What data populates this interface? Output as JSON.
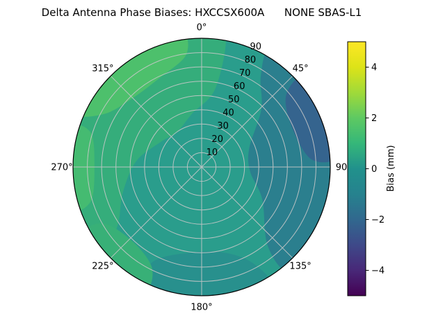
{
  "chart_data": {
    "type": "polar_contour",
    "title": "Delta Antenna Phase Biases: HXCCSX600A      NONE SBAS-L1",
    "station": "HXCCSX600A",
    "signal": "NONE SBAS-L1",
    "azimuth_tick_labels": [
      {
        "deg": 0,
        "label": "0°"
      },
      {
        "deg": 45,
        "label": "45°"
      },
      {
        "deg": 90,
        "label": "90"
      },
      {
        "deg": 135,
        "label": "135°"
      },
      {
        "deg": 180,
        "label": "180°"
      },
      {
        "deg": 225,
        "label": "225°"
      },
      {
        "deg": 270,
        "label": "270°"
      },
      {
        "deg": 315,
        "label": "315°"
      }
    ],
    "radial_axis": {
      "ticks": [
        10,
        20,
        30,
        40,
        50,
        60,
        70,
        80,
        90
      ],
      "max": 90,
      "label_azimuth_deg": 22.5
    },
    "colorbar": {
      "label": "Bias (mm)",
      "min": -5,
      "max": 5,
      "colormap": "viridis",
      "tick_labels": [
        {
          "value": -4,
          "label": "−4"
        },
        {
          "value": -2,
          "label": "−2"
        },
        {
          "value": 0,
          "label": "0"
        },
        {
          "value": 2,
          "label": "2"
        },
        {
          "value": 4,
          "label": "4"
        }
      ],
      "gradient_stops": [
        {
          "value": -5,
          "color": "#440154"
        },
        {
          "value": -4,
          "color": "#482878"
        },
        {
          "value": -3,
          "color": "#3e4989"
        },
        {
          "value": -2,
          "color": "#31688e"
        },
        {
          "value": -1,
          "color": "#26828e"
        },
        {
          "value": 0,
          "color": "#21918c"
        },
        {
          "value": 1,
          "color": "#35b779"
        },
        {
          "value": 2,
          "color": "#5ec962"
        },
        {
          "value": 3,
          "color": "#a0da39"
        },
        {
          "value": 4,
          "color": "#dde318"
        },
        {
          "value": 5,
          "color": "#fde725"
        }
      ]
    },
    "base_bias_mm": 0.5,
    "base_color": "#2a9d8c",
    "grid_color": "#c8c8c8",
    "outline_color": "#000000",
    "regions": [
      {
        "name": "east-negative",
        "bias_mm": -1,
        "color": "#2b7f8e",
        "points": [
          [
            30,
            95
          ],
          [
            45,
            95
          ],
          [
            60,
            95
          ],
          [
            75,
            95
          ],
          [
            90,
            95
          ],
          [
            105,
            95
          ],
          [
            122,
            95
          ],
          [
            140,
            95
          ],
          [
            140,
            72
          ],
          [
            118,
            48
          ],
          [
            95,
            34
          ],
          [
            68,
            36
          ],
          [
            46,
            58
          ],
          [
            33,
            76
          ]
        ]
      },
      {
        "name": "east-rim-blue",
        "bias_mm": -2,
        "color": "#35648e",
        "points": [
          [
            48,
            95
          ],
          [
            60,
            95
          ],
          [
            73,
            95
          ],
          [
            86,
            95
          ],
          [
            86,
            77
          ],
          [
            67,
            69
          ],
          [
            50,
            77
          ]
        ]
      },
      {
        "name": "south-slightly-negative",
        "bias_mm": -0.5,
        "color": "#28908d",
        "points": [
          [
            150,
            95
          ],
          [
            168,
            95
          ],
          [
            188,
            95
          ],
          [
            207,
            95
          ],
          [
            207,
            74
          ],
          [
            186,
            60
          ],
          [
            165,
            62
          ],
          [
            152,
            76
          ]
        ]
      },
      {
        "name": "upper-left-positive",
        "bias_mm": 1.5,
        "color": "#35ad7b",
        "points": [
          [
            228,
            95
          ],
          [
            245,
            95
          ],
          [
            262,
            95
          ],
          [
            279,
            95
          ],
          [
            296,
            95
          ],
          [
            313,
            95
          ],
          [
            330,
            95
          ],
          [
            347,
            95
          ],
          [
            358,
            95
          ],
          [
            370,
            95
          ],
          [
            370,
            56
          ],
          [
            350,
            38
          ],
          [
            325,
            30
          ],
          [
            300,
            34
          ],
          [
            275,
            46
          ],
          [
            252,
            58
          ],
          [
            235,
            72
          ]
        ]
      },
      {
        "name": "southwest-rim-green",
        "bias_mm": 1.5,
        "color": "#38b077",
        "points": [
          [
            205,
            95
          ],
          [
            222,
            95
          ],
          [
            240,
            95
          ],
          [
            240,
            79
          ],
          [
            222,
            71
          ],
          [
            206,
            79
          ]
        ]
      },
      {
        "name": "upper-left-bright",
        "bias_mm": 2.5,
        "color": "#4dc06c",
        "points": [
          [
            293,
            95
          ],
          [
            308,
            95
          ],
          [
            323,
            95
          ],
          [
            338,
            95
          ],
          [
            352,
            95
          ],
          [
            352,
            79
          ],
          [
            335,
            69
          ],
          [
            316,
            68
          ],
          [
            299,
            77
          ]
        ]
      },
      {
        "name": "west-rim-green",
        "bias_mm": 2,
        "color": "#45bb71",
        "points": [
          [
            252,
            95
          ],
          [
            270,
            95
          ],
          [
            287,
            95
          ],
          [
            287,
            81
          ],
          [
            270,
            75
          ],
          [
            253,
            81
          ]
        ]
      }
    ]
  }
}
